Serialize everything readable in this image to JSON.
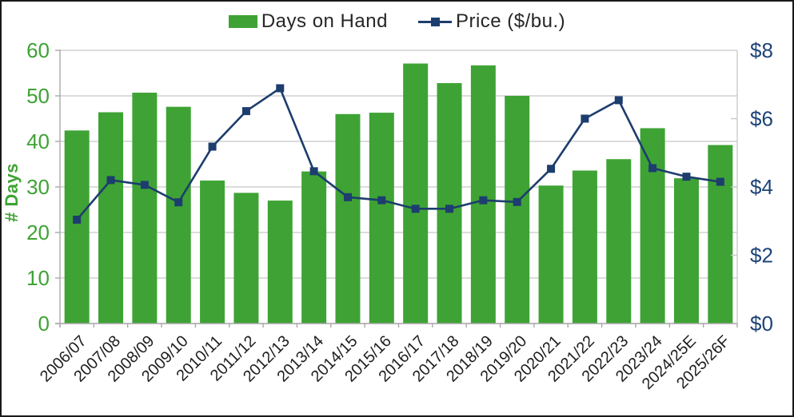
{
  "legend": {
    "days_label": "Days on Hand",
    "price_label": "Price ($/bu.)"
  },
  "colors": {
    "green": "#3EA334",
    "navy": "#1D3D6E",
    "navy_axis_label": "#1E4478",
    "green_axis_label": "#3EA334",
    "gridline": "#C8C8C8",
    "axis_line": "#A8A8A8",
    "x_label": "#1E1E1E",
    "border": "#191919"
  },
  "chart_data": {
    "type": "bar+line combo",
    "title": "",
    "categories": [
      "2006/07",
      "2007/08",
      "2008/09",
      "2009/10",
      "2010/11",
      "2011/12",
      "2012/13",
      "2013/14",
      "2014/15",
      "2015/16",
      "2016/17",
      "2017/18",
      "2018/19",
      "2019/20",
      "2020/21",
      "2021/22",
      "2022/23",
      "2023/24",
      "2024/25E",
      "2025/26F"
    ],
    "series": [
      {
        "name": "Days on Hand",
        "type": "bar",
        "axis": "left",
        "color": "#3EA334",
        "values": [
          42.4,
          46.4,
          50.7,
          47.6,
          31.4,
          28.7,
          27.0,
          33.4,
          46.0,
          46.3,
          57.1,
          52.8,
          56.7,
          50.0,
          30.3,
          33.6,
          36.1,
          42.9,
          31.9,
          39.2
        ]
      },
      {
        "name": "Price ($/bu.)",
        "type": "line",
        "axis": "right",
        "color": "#1D3D6E",
        "marker": "square",
        "values": [
          3.04,
          4.2,
          4.06,
          3.55,
          5.18,
          6.22,
          6.89,
          4.46,
          3.7,
          3.61,
          3.36,
          3.36,
          3.61,
          3.56,
          4.53,
          6.0,
          6.54,
          4.55,
          4.3,
          4.15
        ]
      }
    ],
    "left_axis": {
      "title": "# Days",
      "min": 0,
      "max": 60,
      "tick_interval": 10,
      "tick_labels": [
        "0",
        "10",
        "20",
        "30",
        "40",
        "50",
        "60"
      ]
    },
    "right_axis": {
      "title": "",
      "min": 0,
      "max": 8,
      "tick_interval": 2,
      "tick_labels": [
        "$0",
        "$2",
        "$4",
        "$6",
        "$8"
      ]
    },
    "grid": "horizontal only",
    "legend_position": "top center",
    "x_label_rotation": -45
  }
}
